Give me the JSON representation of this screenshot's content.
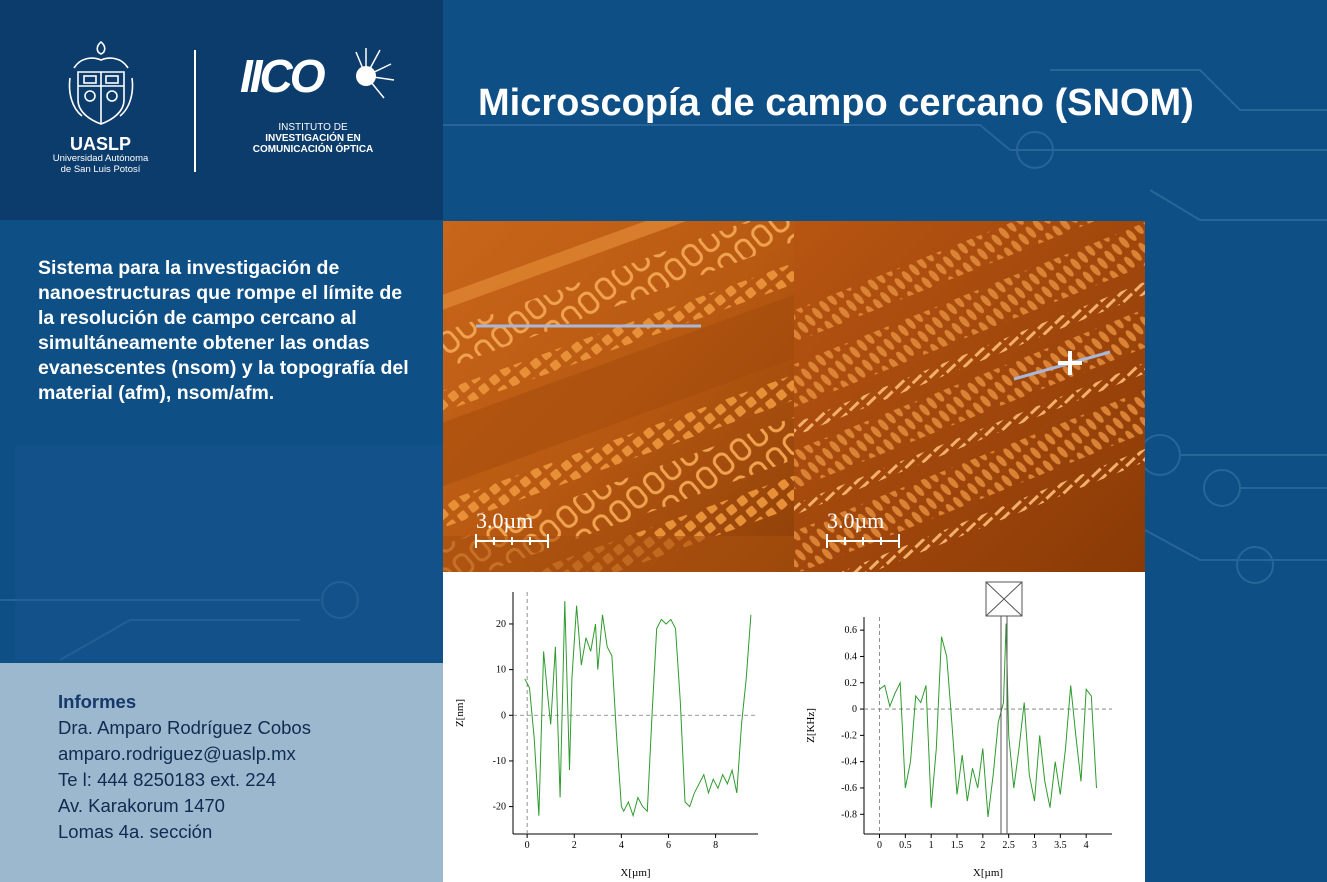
{
  "header": {
    "title": "Microscopía de campo cercano (SNOM)",
    "uaslp_name": "UASLP",
    "uaslp_sub1": "Universidad Autónoma",
    "uaslp_sub2": "de San Luis Potosí",
    "iico_mark": "IICO",
    "iico_line1": "INSTITUTO DE",
    "iico_line2": "INVESTIGACIÓN EN",
    "iico_line3": "COMUNICACIÓN ÓPTICA"
  },
  "description": "Sistema para la investigación de nanoestructuras que rompe el límite de la resolución de campo cercano al simultáneamente obtener las ondas evanescentes (nsom) y la topografía del material (afm), nsom/afm.",
  "info": {
    "heading": "Informes",
    "name": "Dra. Amparo Rodríguez Cobos",
    "email": "amparo.rodriguez@uaslp.mx",
    "phone": "Te l: 444 8250183 ext. 224",
    "address1": "Av. Karakorum 1470",
    "address2": "Lomas 4a. sección"
  },
  "images": {
    "left_scale": "3.0µm",
    "right_scale": "3.0µm"
  },
  "colors": {
    "background": "#0e4f86",
    "logo_panel": "#0c3c6b",
    "info_panel": "#9cb8ce",
    "plot_line": "#2e9b2e"
  },
  "chart_data": [
    {
      "type": "line",
      "xlabel": "X[µm]",
      "ylabel": "Z[nm]",
      "xlim": [
        -0.6,
        9.8
      ],
      "ylim": [
        -26,
        27
      ],
      "xticks": [
        0,
        2,
        4,
        6,
        8
      ],
      "yticks": [
        -20,
        -10,
        0,
        10,
        20
      ],
      "x": [
        -0.1,
        0.1,
        0.3,
        0.5,
        0.7,
        0.9,
        1.0,
        1.2,
        1.4,
        1.6,
        1.8,
        1.9,
        2.1,
        2.3,
        2.5,
        2.7,
        2.9,
        3.0,
        3.2,
        3.4,
        3.6,
        3.8,
        4.0,
        4.1,
        4.3,
        4.5,
        4.7,
        4.9,
        5.1,
        5.3,
        5.5,
        5.7,
        5.9,
        6.1,
        6.3,
        6.5,
        6.7,
        6.9,
        7.1,
        7.3,
        7.5,
        7.7,
        7.9,
        8.1,
        8.3,
        8.5,
        8.7,
        8.9,
        9.1,
        9.3,
        9.5
      ],
      "y": [
        8,
        6,
        -5,
        -22,
        14,
        3,
        -2,
        15,
        -18,
        25,
        -12,
        8,
        24,
        11,
        17,
        14,
        20,
        10,
        22,
        15,
        13,
        -5,
        -20,
        -21,
        -19,
        -22,
        -18,
        -20,
        -21,
        0,
        19,
        21,
        20,
        21,
        19,
        3,
        -19,
        -20,
        -17,
        -15,
        -13,
        -17,
        -14,
        -16,
        -13,
        -15,
        -12,
        -17,
        -2,
        8,
        22
      ]
    },
    {
      "type": "line",
      "xlabel": "X[µm]",
      "ylabel": "Z[KHz]",
      "xlim": [
        -0.3,
        4.5
      ],
      "ylim": [
        -0.95,
        0.7
      ],
      "xticks": [
        0,
        0.5,
        1,
        1.5,
        2,
        2.5,
        3,
        3.5,
        4
      ],
      "yticks": [
        -0.8,
        -0.6,
        -0.4,
        -0.2,
        0,
        0.2,
        0.4,
        0.6
      ],
      "x": [
        0,
        0.1,
        0.2,
        0.3,
        0.4,
        0.5,
        0.6,
        0.7,
        0.8,
        0.9,
        1.0,
        1.1,
        1.2,
        1.3,
        1.4,
        1.5,
        1.6,
        1.7,
        1.8,
        1.9,
        2.0,
        2.1,
        2.2,
        2.3,
        2.4,
        2.45,
        2.5,
        2.6,
        2.7,
        2.8,
        2.9,
        3.0,
        3.1,
        3.2,
        3.3,
        3.4,
        3.5,
        3.6,
        3.7,
        3.8,
        3.9,
        4.0,
        4.1,
        4.2
      ],
      "y": [
        0.15,
        0.18,
        0.02,
        0.12,
        0.2,
        -0.6,
        -0.4,
        0.1,
        0.05,
        0.18,
        -0.75,
        -0.3,
        0.55,
        0.4,
        -0.1,
        -0.65,
        -0.35,
        -0.7,
        -0.45,
        -0.6,
        -0.3,
        -0.82,
        -0.5,
        -0.1,
        0.05,
        0.65,
        -0.2,
        -0.6,
        -0.3,
        0.05,
        -0.5,
        -0.7,
        -0.2,
        -0.55,
        -0.75,
        -0.4,
        -0.65,
        -0.3,
        0.18,
        -0.2,
        -0.55,
        0.15,
        0.1,
        -0.6
      ]
    }
  ]
}
